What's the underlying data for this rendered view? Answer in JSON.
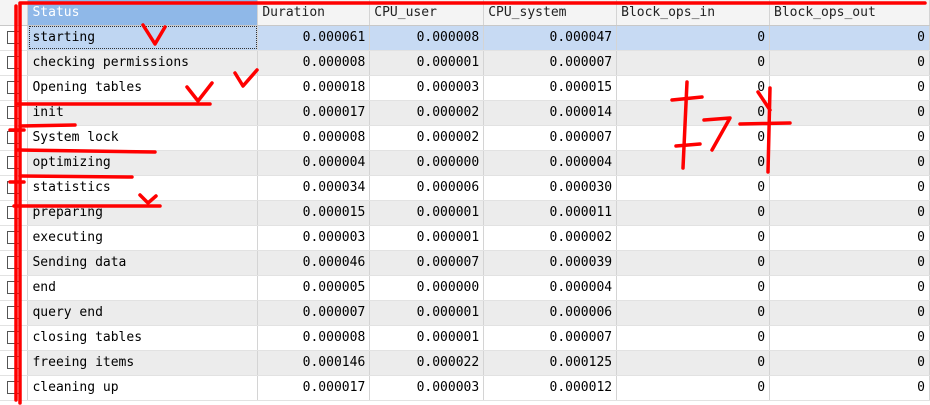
{
  "columns": [
    "Status",
    "Duration",
    "CPU_user",
    "CPU_system",
    "Block_ops_in",
    "Block_ops_out"
  ],
  "rows": [
    {
      "status": "starting",
      "duration": "0.000061",
      "cpu_user": "0.000008",
      "cpu_system": "0.000047",
      "block_in": "0",
      "block_out": "0"
    },
    {
      "status": "checking permissions",
      "duration": "0.000008",
      "cpu_user": "0.000001",
      "cpu_system": "0.000007",
      "block_in": "0",
      "block_out": "0"
    },
    {
      "status": "Opening tables",
      "duration": "0.000018",
      "cpu_user": "0.000003",
      "cpu_system": "0.000015",
      "block_in": "0",
      "block_out": "0"
    },
    {
      "status": "init",
      "duration": "0.000017",
      "cpu_user": "0.000002",
      "cpu_system": "0.000014",
      "block_in": "0",
      "block_out": "0"
    },
    {
      "status": "System lock",
      "duration": "0.000008",
      "cpu_user": "0.000002",
      "cpu_system": "0.000007",
      "block_in": "0",
      "block_out": "0"
    },
    {
      "status": "optimizing",
      "duration": "0.000004",
      "cpu_user": "0.000000",
      "cpu_system": "0.000004",
      "block_in": "0",
      "block_out": "0"
    },
    {
      "status": "statistics",
      "duration": "0.000034",
      "cpu_user": "0.000006",
      "cpu_system": "0.000030",
      "block_in": "0",
      "block_out": "0"
    },
    {
      "status": "preparing",
      "duration": "0.000015",
      "cpu_user": "0.000001",
      "cpu_system": "0.000011",
      "block_in": "0",
      "block_out": "0"
    },
    {
      "status": "executing",
      "duration": "0.000003",
      "cpu_user": "0.000001",
      "cpu_system": "0.000002",
      "block_in": "0",
      "block_out": "0"
    },
    {
      "status": "Sending data",
      "duration": "0.000046",
      "cpu_user": "0.000007",
      "cpu_system": "0.000039",
      "block_in": "0",
      "block_out": "0"
    },
    {
      "status": "end",
      "duration": "0.000005",
      "cpu_user": "0.000000",
      "cpu_system": "0.000004",
      "block_in": "0",
      "block_out": "0"
    },
    {
      "status": "query end",
      "duration": "0.000007",
      "cpu_user": "0.000001",
      "cpu_system": "0.000006",
      "block_in": "0",
      "block_out": "0"
    },
    {
      "status": "closing tables",
      "duration": "0.000008",
      "cpu_user": "0.000001",
      "cpu_system": "0.000007",
      "block_in": "0",
      "block_out": "0"
    },
    {
      "status": "freeing items",
      "duration": "0.000146",
      "cpu_user": "0.000022",
      "cpu_system": "0.000125",
      "block_in": "0",
      "block_out": "0"
    },
    {
      "status": "cleaning up",
      "duration": "0.000017",
      "cpu_user": "0.000003",
      "cpu_system": "0.000012",
      "block_in": "0",
      "block_out": "0"
    }
  ],
  "selected_row": 0,
  "annotation_color": "#ff0000"
}
